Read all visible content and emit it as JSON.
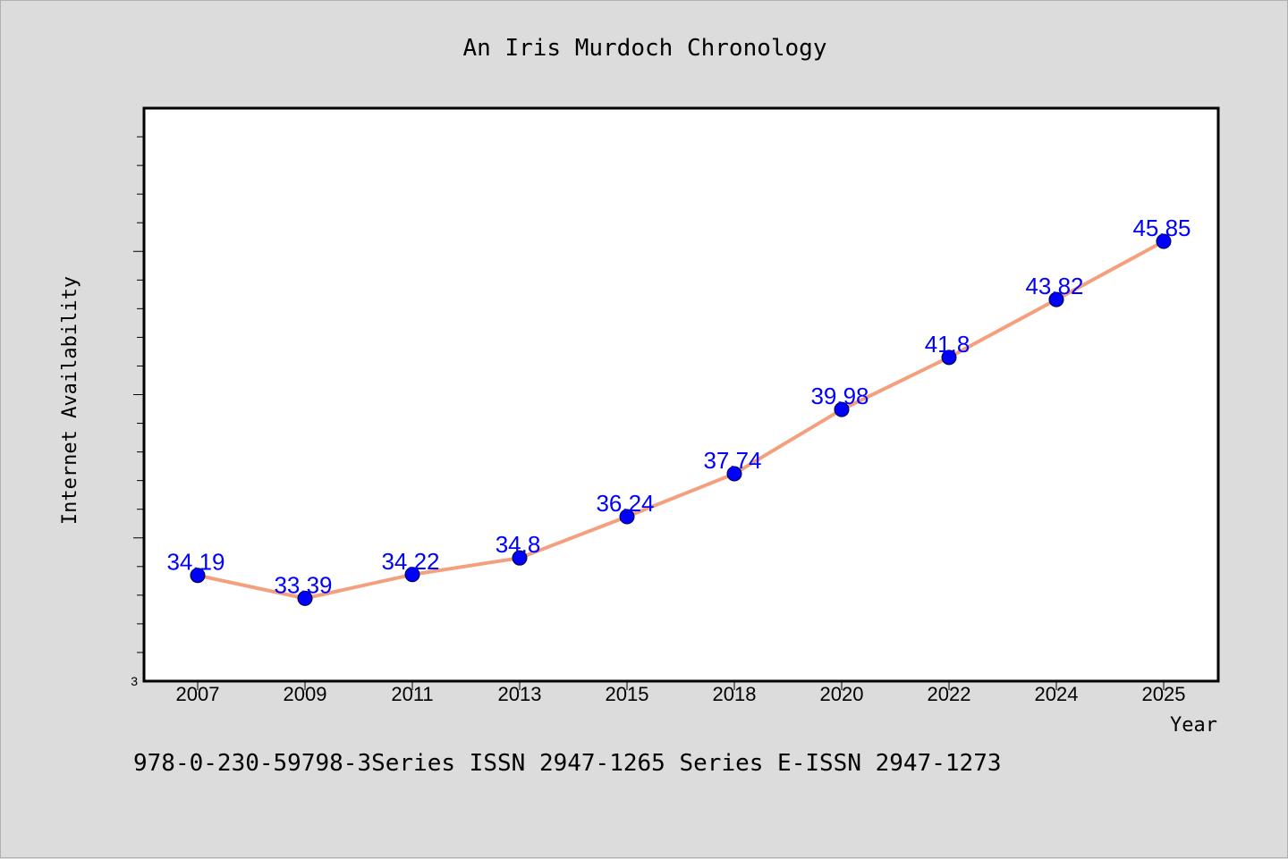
{
  "chart_data": {
    "type": "line",
    "title": "An Iris Murdoch Chronology",
    "xlabel": "Year",
    "ylabel": "Internet Availability",
    "categories": [
      "2007",
      "2009",
      "2011",
      "2013",
      "2015",
      "2018",
      "2020",
      "2022",
      "2024",
      "2025"
    ],
    "series": [
      {
        "values": [
          34.19,
          33.39,
          34.22,
          34.8,
          36.24,
          37.74,
          39.98,
          41.8,
          43.82,
          45.85
        ]
      }
    ],
    "data_labels": [
      "34.19",
      "33.39",
      "34.22",
      "34.8",
      "36.24",
      "37.74",
      "39.98",
      "41.8",
      "43.82",
      "45.85"
    ],
    "ylim": [
      30.5,
      50.5
    ],
    "y_tick_labels": [
      "3"
    ],
    "grid": false,
    "line_color": "#f4a07e",
    "marker_color": "#0000ff",
    "label_color": "#0000ff"
  },
  "footer": {
    "text": "978-0-230-59798-3Series ISSN 2947-1265 Series E-ISSN 2947-1273"
  }
}
